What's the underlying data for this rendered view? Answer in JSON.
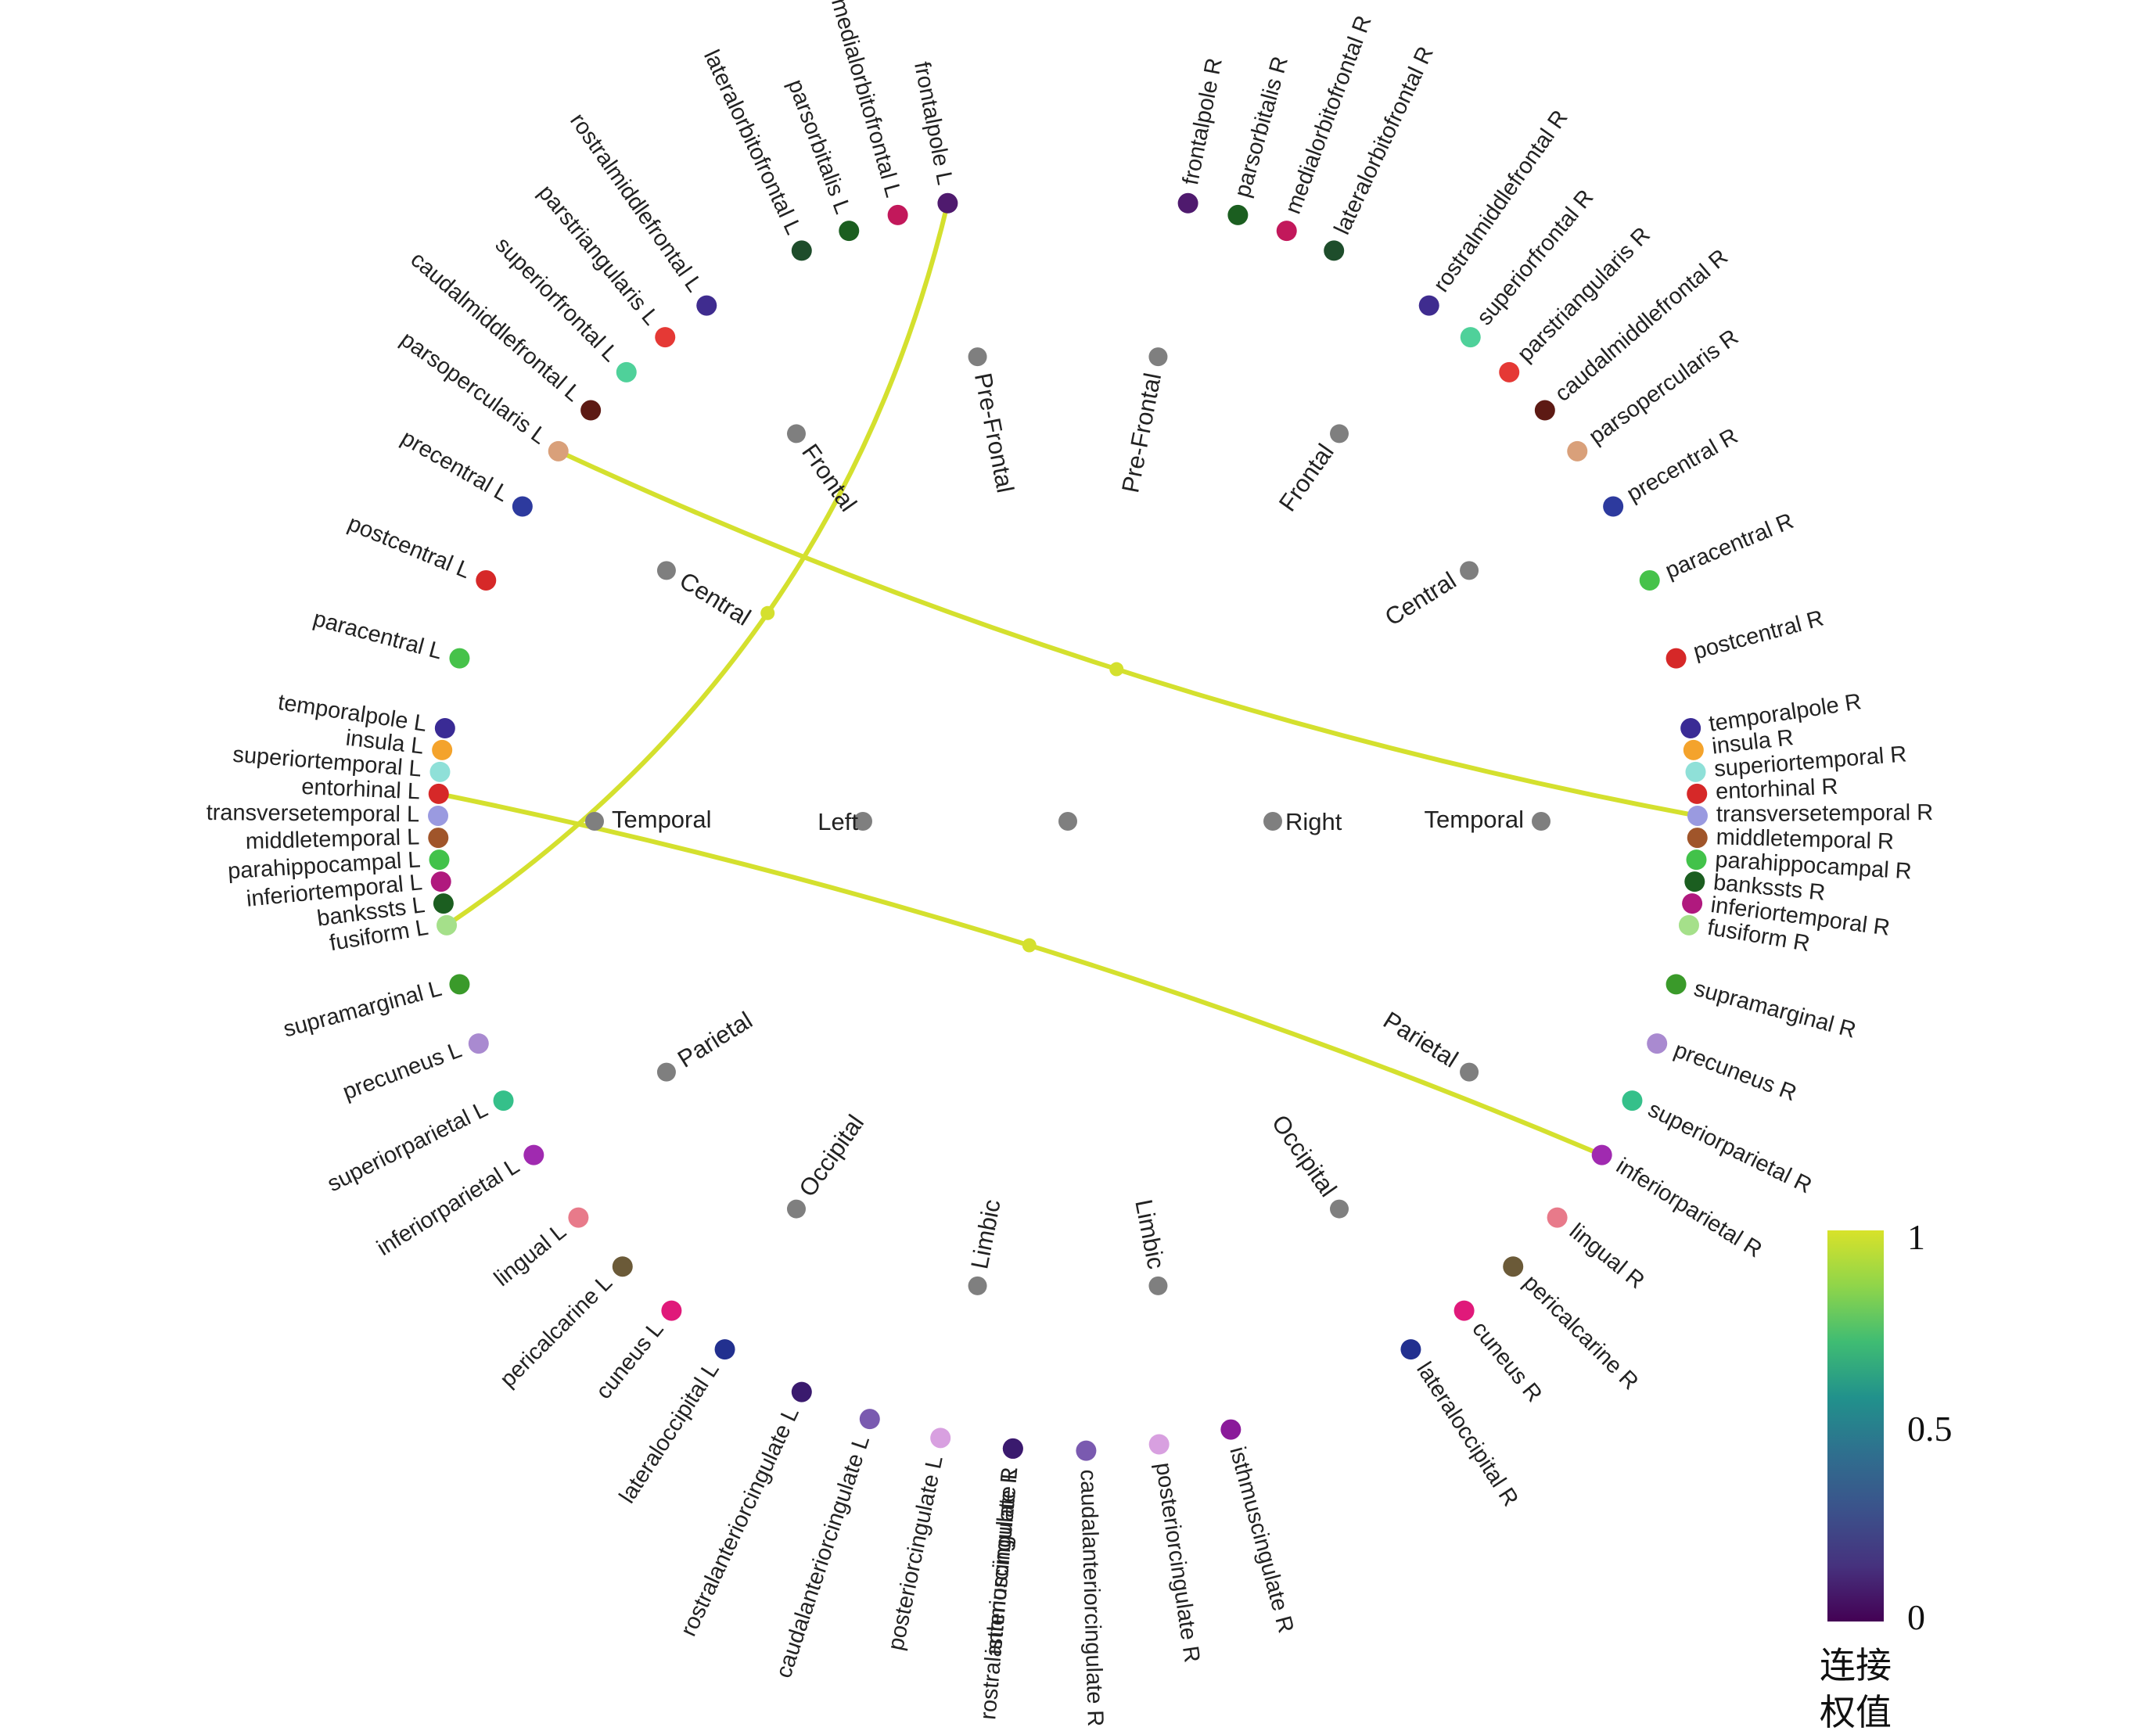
{
  "diagram": {
    "type": "connectogram",
    "hemispheres": {
      "left": "Left",
      "right": "Right"
    },
    "left_groups": [
      {
        "label": "Pre-Frontal",
        "regions": [
          {
            "name": "frontalpole L",
            "color": "#4f1a6e"
          },
          {
            "name": "medialorbitofrontal L",
            "color": "#c2185b"
          },
          {
            "name": "parsorbitalis L",
            "color": "#1b5e20"
          },
          {
            "name": "lateralorbitofrontal L",
            "color": "#1e4d2b"
          }
        ]
      },
      {
        "label": "Frontal",
        "regions": [
          {
            "name": "rostralmiddlefrontal L",
            "color": "#3f2c8f"
          },
          {
            "name": "parstriangularis L",
            "color": "#e53935"
          },
          {
            "name": "superiorfrontal L",
            "color": "#4fd19a"
          },
          {
            "name": "caudalmiddlefrontal L",
            "color": "#5d1a14"
          },
          {
            "name": "parsopercularis L",
            "color": "#d9a07a"
          }
        ]
      },
      {
        "label": "Central",
        "regions": [
          {
            "name": "precentral L",
            "color": "#2d3a9e"
          },
          {
            "name": "postcentral L",
            "color": "#d62828"
          },
          {
            "name": "paracentral L",
            "color": "#46c24a"
          }
        ]
      },
      {
        "label": "Temporal",
        "regions": [
          {
            "name": "temporalpole L",
            "color": "#3a2b95"
          },
          {
            "name": "insula L",
            "color": "#f4a32c"
          },
          {
            "name": "superiortemporal L",
            "color": "#8fe0d8"
          },
          {
            "name": "entorhinal L",
            "color": "#d62828"
          },
          {
            "name": "transversetemporal L",
            "color": "#9a9ae0"
          },
          {
            "name": "middletemporal L",
            "color": "#a0552a"
          },
          {
            "name": "parahippocampal L",
            "color": "#42c24a"
          },
          {
            "name": "inferiortemporal L",
            "color": "#b0197e"
          },
          {
            "name": "bankssts L",
            "color": "#1b5e20"
          },
          {
            "name": "fusiform L",
            "color": "#a5e08a"
          }
        ]
      },
      {
        "label": "Parietal",
        "regions": [
          {
            "name": "supramarginal L",
            "color": "#3a9a2a"
          },
          {
            "name": "precuneus L",
            "color": "#a98ad0"
          },
          {
            "name": "superiorparietal L",
            "color": "#35c08a"
          },
          {
            "name": "inferiorparietal L",
            "color": "#a02ab0"
          }
        ]
      },
      {
        "label": "Occipital",
        "regions": [
          {
            "name": "lingual L",
            "color": "#e87a8a"
          },
          {
            "name": "pericalcarine L",
            "color": "#6b5a38"
          },
          {
            "name": "cuneus L",
            "color": "#e0197a"
          },
          {
            "name": "lateraloccipital L",
            "color": "#22308f"
          }
        ]
      },
      {
        "label": "Limbic",
        "regions": [
          {
            "name": "rostralanteriorcingulate L",
            "color": "#3a1a6e"
          },
          {
            "name": "caudalanteriorcingulate L",
            "color": "#7a5ab0"
          },
          {
            "name": "posteriorcingulate L",
            "color": "#d8a0e0"
          },
          {
            "name": "isthmuscingulate L",
            "color": "#8a1a9a"
          }
        ]
      }
    ],
    "right_groups": [
      {
        "label": "Pre-Frontal",
        "regions": [
          {
            "name": "frontalpole R",
            "color": "#4f1a6e"
          },
          {
            "name": "parsorbitalis R",
            "color": "#1b5e20"
          },
          {
            "name": "medialorbitofrontal R",
            "color": "#c2185b"
          },
          {
            "name": "lateralorbitofrontal R",
            "color": "#1e4d2b"
          }
        ]
      },
      {
        "label": "Frontal",
        "regions": [
          {
            "name": "rostralmiddlefrontal R",
            "color": "#3f2c8f"
          },
          {
            "name": "superiorfrontal R",
            "color": "#4fd19a"
          },
          {
            "name": "parstriangularis R",
            "color": "#e53935"
          },
          {
            "name": "caudalmiddlefrontal R",
            "color": "#5d1a14"
          },
          {
            "name": "parsopercularis R",
            "color": "#d9a07a"
          }
        ]
      },
      {
        "label": "Central",
        "regions": [
          {
            "name": "precentral R",
            "color": "#2d3a9e"
          },
          {
            "name": "paracentral R",
            "color": "#46c24a"
          },
          {
            "name": "postcentral R",
            "color": "#d62828"
          }
        ]
      },
      {
        "label": "Temporal",
        "regions": [
          {
            "name": "temporalpole R",
            "color": "#3a2b95"
          },
          {
            "name": "insula R",
            "color": "#f4a32c"
          },
          {
            "name": "superiortemporal R",
            "color": "#8fe0d8"
          },
          {
            "name": "entorhinal R",
            "color": "#d62828"
          },
          {
            "name": "transversetemporal R",
            "color": "#9a9ae0"
          },
          {
            "name": "middletemporal R",
            "color": "#a0552a"
          },
          {
            "name": "parahippocampal R",
            "color": "#42c24a"
          },
          {
            "name": "bankssts R",
            "color": "#1b5e20"
          },
          {
            "name": "inferiortemporal R",
            "color": "#b0197e"
          },
          {
            "name": "fusiform R",
            "color": "#a5e08a"
          }
        ]
      },
      {
        "label": "Parietal",
        "regions": [
          {
            "name": "supramarginal R",
            "color": "#3a9a2a"
          },
          {
            "name": "precuneus R",
            "color": "#a98ad0"
          },
          {
            "name": "superiorparietal R",
            "color": "#35c08a"
          },
          {
            "name": "inferiorparietal R",
            "color": "#a02ab0"
          }
        ]
      },
      {
        "label": "Occipital",
        "regions": [
          {
            "name": "lingual R",
            "color": "#e87a8a"
          },
          {
            "name": "pericalcarine R",
            "color": "#6b5a38"
          },
          {
            "name": "cuneus R",
            "color": "#e0197a"
          },
          {
            "name": "lateraloccipital R",
            "color": "#22308f"
          }
        ]
      },
      {
        "label": "Limbic",
        "regions": [
          {
            "name": "isthmuscingulate R",
            "color": "#8a1a9a"
          },
          {
            "name": "posteriorcingulate R",
            "color": "#d8a0e0"
          },
          {
            "name": "caudalanteriorcingulate R",
            "color": "#7a5ab0"
          },
          {
            "name": "rostralanteriorcingulate R",
            "color": "#3a1a6e"
          }
        ]
      }
    ],
    "connections": [
      {
        "from": "frontalpole L",
        "to": "fusiform L",
        "weight": 1
      },
      {
        "from": "parsopercularis L",
        "to": "transversetemporal R",
        "weight": 1
      },
      {
        "from": "entorhinal L",
        "to": "inferiorparietal R",
        "weight": 1
      }
    ],
    "colorbar": {
      "title_lines": [
        "连接",
        "权值"
      ],
      "ticks": [
        "1",
        "0.5",
        "0"
      ],
      "colors": [
        "#d8e22a",
        "#8fd54a",
        "#3fbc73",
        "#21918c",
        "#2f6f8e",
        "#3b528b",
        "#46327e",
        "#440154"
      ],
      "node_color": "#7f7f7f",
      "edge_color": "#d4e02e"
    }
  }
}
